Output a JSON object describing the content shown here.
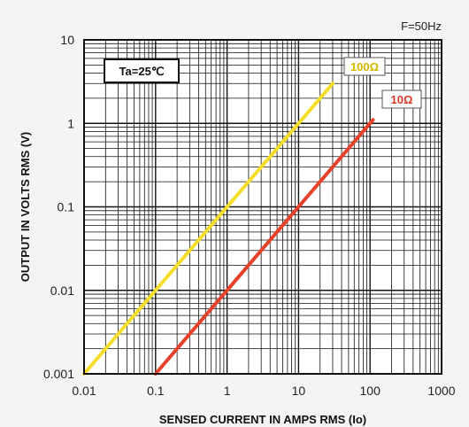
{
  "chart_data": {
    "type": "line",
    "title": "",
    "annotation": "Ta=25℃",
    "frequency_note": "F=50Hz",
    "xlabel": "SENSED CURRENT IN AMPS RMS (Io)",
    "ylabel": "OUTPUT  IN  VOLTS RMS (V)",
    "xscale": "log",
    "yscale": "log",
    "xlim": [
      0.01,
      1000
    ],
    "ylim": [
      0.001,
      10
    ],
    "grid": true,
    "x_ticks": [
      "0.01",
      "0.1",
      "1",
      "10",
      "100",
      "1000"
    ],
    "y_ticks": [
      "0.001",
      "0.01",
      "0.1",
      "1",
      "10"
    ],
    "colors": {
      "load_100": "#f5dd28",
      "load_10": "#e8412a",
      "grid": "#111111"
    },
    "series": [
      {
        "name": "100Ω",
        "x": [
          0.01,
          30
        ],
        "y": [
          0.001,
          3
        ]
      },
      {
        "name": "10Ω",
        "x": [
          0.1,
          110
        ],
        "y": [
          0.001,
          1.1
        ]
      }
    ]
  }
}
